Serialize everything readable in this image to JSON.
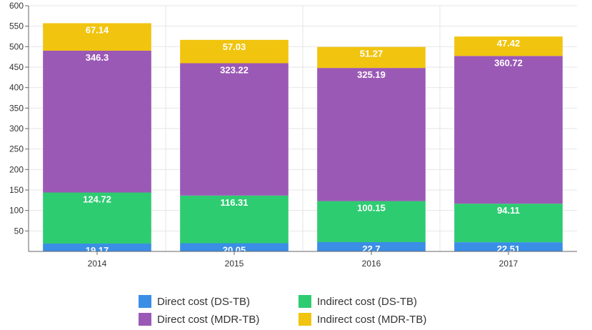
{
  "chart_data": {
    "type": "bar",
    "stacked": true,
    "categories": [
      "2014",
      "2015",
      "2016",
      "2017"
    ],
    "series": [
      {
        "name": "Direct cost (DS-TB)",
        "color": "#3a8ee6",
        "values": [
          19.17,
          20.05,
          22.7,
          22.51
        ]
      },
      {
        "name": "Indirect cost (DS-TB)",
        "color": "#2ecc71",
        "values": [
          124.72,
          116.31,
          100.15,
          94.11
        ]
      },
      {
        "name": "Direct cost (MDR-TB)",
        "color": "#9b59b6",
        "values": [
          346.3,
          323.22,
          325.19,
          360.72
        ]
      },
      {
        "name": "Indirect cost (MDR-TB)",
        "color": "#f1c40f",
        "values": [
          67.14,
          57.03,
          51.27,
          47.42
        ]
      }
    ],
    "ylim": [
      0,
      600
    ],
    "yticks": [
      50,
      100,
      150,
      200,
      250,
      300,
      350,
      400,
      450,
      500,
      550,
      600
    ],
    "grid": true,
    "legend_position": "bottom",
    "title": "",
    "xlabel": "",
    "ylabel": ""
  }
}
